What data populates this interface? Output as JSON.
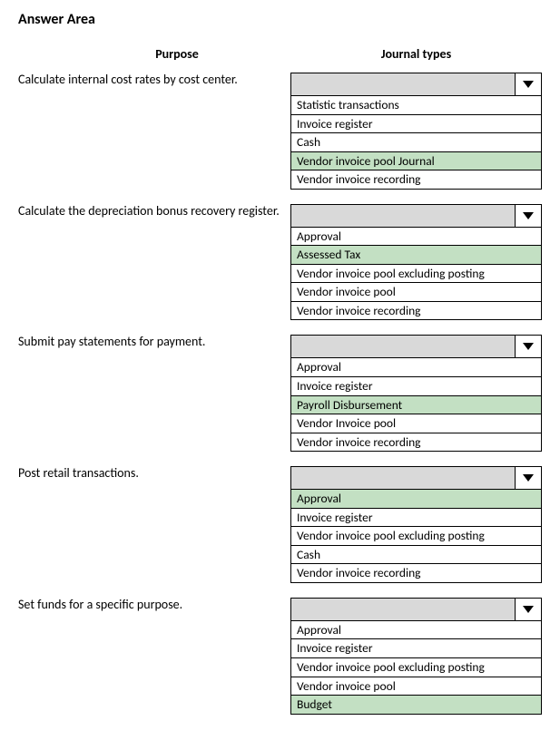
{
  "title": "Answer Area",
  "headers": {
    "purpose": "Purpose",
    "journal": "Journal types"
  },
  "highlight_color": "#c3e0c3",
  "header_bg": "#d9d9d9",
  "rows": [
    {
      "purpose": "Calculate internal cost rates by cost center.",
      "options": [
        {
          "label": "Statistic transactions",
          "highlight": false
        },
        {
          "label": "Invoice register",
          "highlight": false
        },
        {
          "label": "Cash",
          "highlight": false
        },
        {
          "label": "Vendor invoice pool Journal",
          "highlight": true
        },
        {
          "label": "Vendor invoice recording",
          "highlight": false
        }
      ]
    },
    {
      "purpose": "Calculate the depreciation bonus recovery register.",
      "options": [
        {
          "label": "Approval",
          "highlight": false
        },
        {
          "label": "Assessed Tax",
          "highlight": true
        },
        {
          "label": "Vendor invoice pool excluding posting",
          "highlight": false
        },
        {
          "label": "Vendor invoice pool",
          "highlight": false
        },
        {
          "label": "Vendor invoice recording",
          "highlight": false
        }
      ]
    },
    {
      "purpose": "Submit pay statements for payment.",
      "options": [
        {
          "label": "Approval",
          "highlight": false
        },
        {
          "label": "Invoice register",
          "highlight": false
        },
        {
          "label": "Payroll Disbursement",
          "highlight": true
        },
        {
          "label": "Vendor Invoice pool",
          "highlight": false
        },
        {
          "label": "Vendor invoice recording",
          "highlight": false
        }
      ]
    },
    {
      "purpose": "Post retail transactions.",
      "options": [
        {
          "label": "Approval",
          "highlight": true
        },
        {
          "label": "Invoice register",
          "highlight": false
        },
        {
          "label": "Vendor invoice pool excluding posting",
          "highlight": false
        },
        {
          "label": "Cash",
          "highlight": false
        },
        {
          "label": "Vendor invoice recording",
          "highlight": false
        }
      ]
    },
    {
      "purpose": "Set funds for a specific purpose.",
      "options": [
        {
          "label": "Approval",
          "highlight": false
        },
        {
          "label": "Invoice register",
          "highlight": false
        },
        {
          "label": "Vendor invoice pool excluding posting",
          "highlight": false
        },
        {
          "label": "Vendor invoice pool",
          "highlight": false
        },
        {
          "label": "Budget",
          "highlight": true
        }
      ]
    }
  ]
}
